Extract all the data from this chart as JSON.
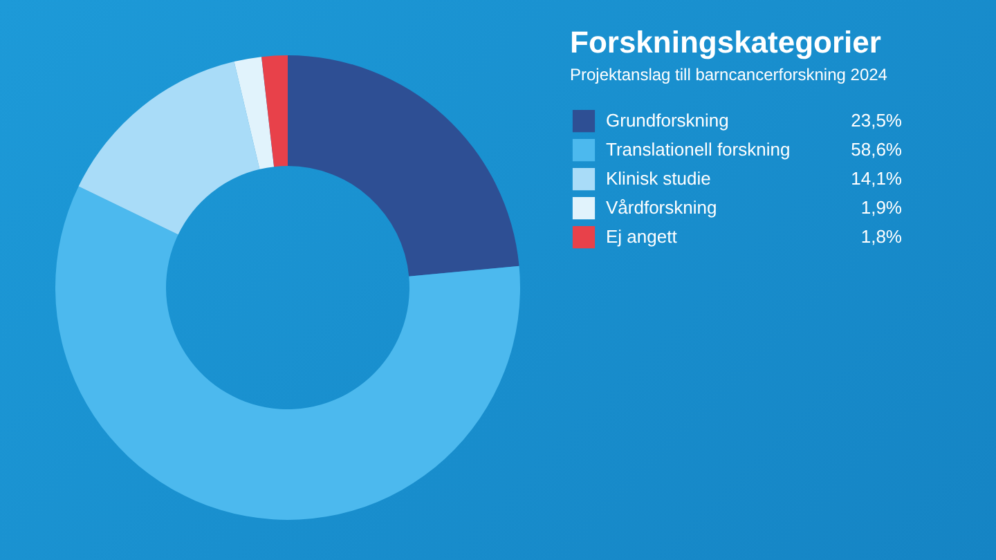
{
  "chart_data": {
    "type": "donut",
    "title": "Forskningskategorier",
    "subtitle": "Projektanslag till barncancerforskning 2024",
    "categories": [
      "Grundforskning",
      "Translationell forskning",
      "Klinisk studie",
      "Vårdforskning",
      "Ej angett"
    ],
    "values": [
      23.5,
      58.6,
      14.1,
      1.9,
      1.8
    ],
    "value_labels": [
      "23,5%",
      "58,6%",
      "14,1%",
      "1,9%",
      "1,8%"
    ],
    "colors": [
      "#2e4f94",
      "#4cb9ee",
      "#a9dcf8",
      "#e1f3fc",
      "#e8414a"
    ],
    "legend": "right"
  }
}
